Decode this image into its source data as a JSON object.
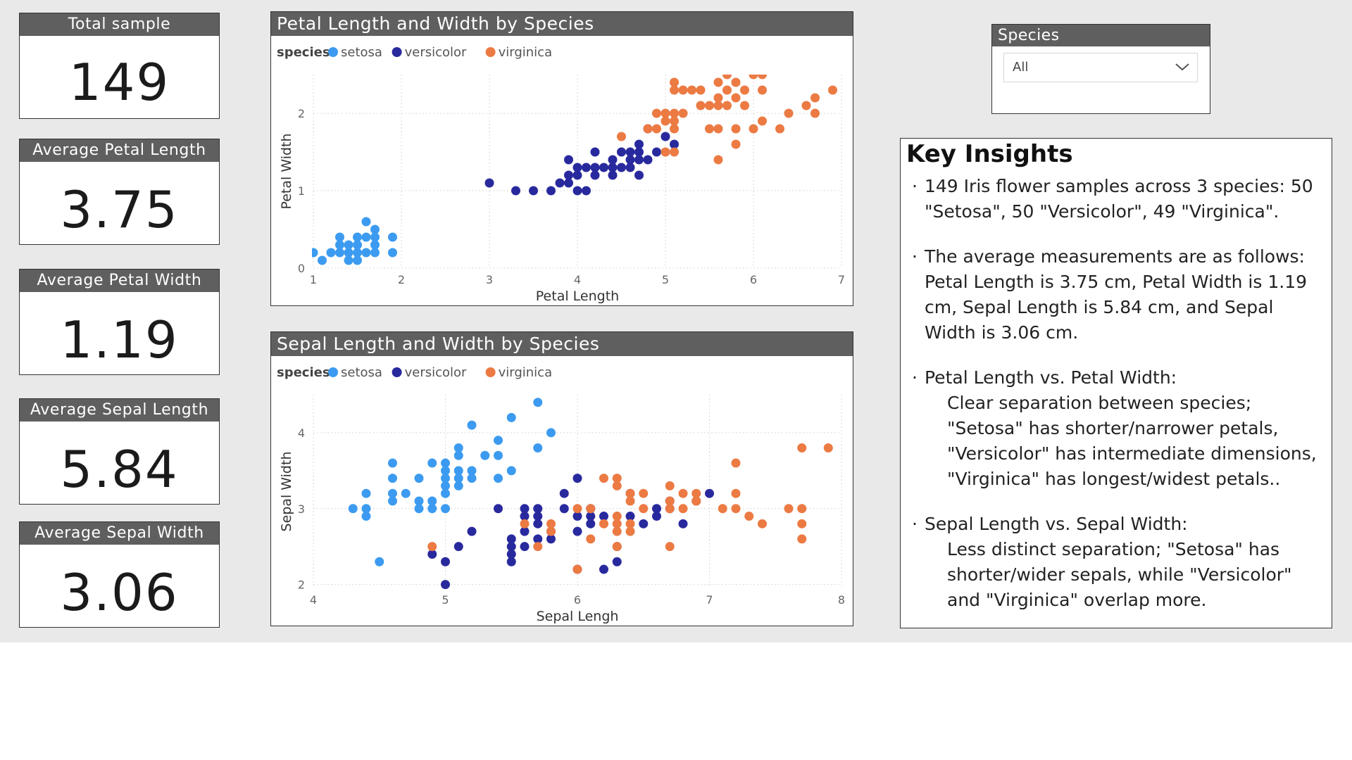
{
  "cards": [
    {
      "title": "Total sample",
      "value": "149"
    },
    {
      "title": "Average Petal Length",
      "value": "3.75"
    },
    {
      "title": "Average Petal Width",
      "value": "1.19"
    },
    {
      "title": "Average Sepal Length",
      "value": "5.84"
    },
    {
      "title": "Average Sepal Width",
      "value": "3.06"
    }
  ],
  "slicer": {
    "title": "Species",
    "selected": "All",
    "icon": "chevron-down-icon"
  },
  "insights": {
    "title": "Key Insights",
    "bullets": [
      {
        "text": "149 Iris flower samples across 3 species: 50 \"Setosa\", 50 \"Versicolor\", 49 \"Virginica\"."
      },
      {
        "text": "The average measurements are as follows: Petal Length is 3.75 cm, Petal Width is 1.19 cm, Sepal Length is 5.84 cm, and Sepal Width is 3.06 cm."
      },
      {
        "text": "Petal Length vs. Petal Width:",
        "sub": "Clear separation between species; \"Setosa\" has shorter/narrower petals, \"Versicolor\" has intermediate dimensions, \"Virginica\" has longest/widest petals.."
      },
      {
        "text": "Sepal Length vs. Sepal Width:",
        "sub": "Less distinct separation; \"Setosa\" has shorter/wider sepals, while \"Versicolor\" and \"Virginica\" overlap more."
      }
    ]
  },
  "colors": {
    "setosa": "#3c9bf0",
    "versicolor": "#29299e",
    "virginica": "#ec7a43",
    "header": "#5f5f5f"
  },
  "chart_data": [
    {
      "type": "scatter",
      "title": "Petal Length and Width by Species",
      "xlabel": "Petal Length",
      "ylabel": "Petal Width",
      "legend_title": "species",
      "legend_position": "top-left",
      "grid": true,
      "xlim": [
        1,
        7
      ],
      "ylim": [
        0,
        2.5
      ],
      "xticks": [
        1,
        2,
        3,
        4,
        5,
        6,
        7
      ],
      "yticks": [
        0,
        1,
        2
      ],
      "series": [
        {
          "name": "setosa",
          "color": "#3c9bf0",
          "points": [
            [
              1.0,
              0.2
            ],
            [
              1.1,
              0.1
            ],
            [
              1.2,
              0.2
            ],
            [
              1.3,
              0.2
            ],
            [
              1.3,
              0.3
            ],
            [
              1.3,
              0.4
            ],
            [
              1.4,
              0.1
            ],
            [
              1.4,
              0.2
            ],
            [
              1.4,
              0.3
            ],
            [
              1.5,
              0.1
            ],
            [
              1.5,
              0.2
            ],
            [
              1.5,
              0.3
            ],
            [
              1.5,
              0.4
            ],
            [
              1.6,
              0.2
            ],
            [
              1.6,
              0.4
            ],
            [
              1.6,
              0.6
            ],
            [
              1.7,
              0.2
            ],
            [
              1.7,
              0.3
            ],
            [
              1.7,
              0.4
            ],
            [
              1.7,
              0.5
            ],
            [
              1.9,
              0.2
            ],
            [
              1.9,
              0.4
            ]
          ]
        },
        {
          "name": "versicolor",
          "color": "#29299e",
          "points": [
            [
              3.0,
              1.1
            ],
            [
              3.3,
              1.0
            ],
            [
              3.5,
              1.0
            ],
            [
              3.7,
              1.0
            ],
            [
              3.8,
              1.1
            ],
            [
              3.9,
              1.1
            ],
            [
              3.9,
              1.2
            ],
            [
              3.9,
              1.4
            ],
            [
              4.0,
              1.0
            ],
            [
              4.0,
              1.2
            ],
            [
              4.0,
              1.3
            ],
            [
              4.1,
              1.0
            ],
            [
              4.1,
              1.3
            ],
            [
              4.2,
              1.2
            ],
            [
              4.2,
              1.3
            ],
            [
              4.2,
              1.5
            ],
            [
              4.3,
              1.3
            ],
            [
              4.4,
              1.2
            ],
            [
              4.4,
              1.3
            ],
            [
              4.4,
              1.4
            ],
            [
              4.5,
              1.3
            ],
            [
              4.5,
              1.5
            ],
            [
              4.6,
              1.3
            ],
            [
              4.6,
              1.4
            ],
            [
              4.6,
              1.5
            ],
            [
              4.7,
              1.2
            ],
            [
              4.7,
              1.4
            ],
            [
              4.7,
              1.5
            ],
            [
              4.7,
              1.6
            ],
            [
              4.8,
              1.4
            ],
            [
              4.8,
              1.8
            ],
            [
              4.9,
              1.5
            ],
            [
              5.0,
              1.7
            ],
            [
              5.1,
              1.6
            ]
          ]
        },
        {
          "name": "virginica",
          "color": "#ec7a43",
          "points": [
            [
              4.5,
              1.7
            ],
            [
              4.8,
              1.8
            ],
            [
              4.9,
              1.8
            ],
            [
              4.9,
              2.0
            ],
            [
              5.0,
              1.5
            ],
            [
              5.0,
              1.9
            ],
            [
              5.0,
              2.0
            ],
            [
              5.1,
              1.5
            ],
            [
              5.1,
              1.8
            ],
            [
              5.1,
              1.9
            ],
            [
              5.1,
              2.0
            ],
            [
              5.1,
              2.3
            ],
            [
              5.1,
              2.4
            ],
            [
              5.2,
              2.0
            ],
            [
              5.2,
              2.3
            ],
            [
              5.3,
              2.3
            ],
            [
              5.4,
              2.3
            ],
            [
              5.4,
              2.1
            ],
            [
              5.5,
              1.8
            ],
            [
              5.5,
              2.1
            ],
            [
              5.6,
              1.8
            ],
            [
              5.6,
              2.1
            ],
            [
              5.6,
              2.2
            ],
            [
              5.6,
              2.4
            ],
            [
              5.6,
              1.4
            ],
            [
              5.7,
              2.1
            ],
            [
              5.7,
              2.3
            ],
            [
              5.7,
              2.5
            ],
            [
              5.8,
              1.6
            ],
            [
              5.8,
              1.8
            ],
            [
              5.8,
              2.2
            ],
            [
              5.8,
              2.4
            ],
            [
              5.9,
              2.1
            ],
            [
              5.9,
              2.3
            ],
            [
              6.0,
              1.8
            ],
            [
              6.0,
              2.5
            ],
            [
              6.1,
              1.9
            ],
            [
              6.1,
              2.3
            ],
            [
              6.1,
              2.5
            ],
            [
              6.3,
              1.8
            ],
            [
              6.4,
              2.0
            ],
            [
              6.6,
              2.1
            ],
            [
              6.7,
              2.0
            ],
            [
              6.7,
              2.2
            ],
            [
              6.9,
              2.3
            ]
          ]
        }
      ]
    },
    {
      "type": "scatter",
      "title": "Sepal Length and Width by Species",
      "xlabel": "Sepal Lengh",
      "ylabel": "Sepal Width",
      "legend_title": "species",
      "legend_position": "top-left",
      "grid": true,
      "xlim": [
        4,
        8
      ],
      "ylim": [
        1.95,
        4.5
      ],
      "xticks": [
        4,
        5,
        6,
        7,
        8
      ],
      "yticks": [
        2,
        3,
        4
      ],
      "series": [
        {
          "name": "setosa",
          "color": "#3c9bf0",
          "points": [
            [
              4.3,
              3.0
            ],
            [
              4.4,
              2.9
            ],
            [
              4.4,
              3.0
            ],
            [
              4.4,
              3.2
            ],
            [
              4.5,
              2.3
            ],
            [
              4.6,
              3.1
            ],
            [
              4.6,
              3.2
            ],
            [
              4.6,
              3.4
            ],
            [
              4.6,
              3.6
            ],
            [
              4.7,
              3.2
            ],
            [
              4.8,
              3.0
            ],
            [
              4.8,
              3.1
            ],
            [
              4.8,
              3.4
            ],
            [
              4.9,
              3.0
            ],
            [
              4.9,
              3.1
            ],
            [
              4.9,
              3.6
            ],
            [
              5.0,
              3.0
            ],
            [
              5.0,
              3.2
            ],
            [
              5.0,
              3.3
            ],
            [
              5.0,
              3.4
            ],
            [
              5.0,
              3.5
            ],
            [
              5.0,
              3.6
            ],
            [
              5.1,
              3.3
            ],
            [
              5.1,
              3.4
            ],
            [
              5.1,
              3.5
            ],
            [
              5.1,
              3.7
            ],
            [
              5.1,
              3.8
            ],
            [
              5.2,
              3.4
            ],
            [
              5.2,
              3.5
            ],
            [
              5.2,
              4.1
            ],
            [
              5.3,
              3.7
            ],
            [
              5.4,
              3.4
            ],
            [
              5.4,
              3.7
            ],
            [
              5.4,
              3.9
            ],
            [
              5.5,
              3.5
            ],
            [
              5.5,
              4.2
            ],
            [
              5.7,
              3.8
            ],
            [
              5.7,
              4.4
            ],
            [
              5.8,
              4.0
            ]
          ]
        },
        {
          "name": "versicolor",
          "color": "#29299e",
          "points": [
            [
              4.9,
              2.4
            ],
            [
              5.0,
              2.0
            ],
            [
              5.0,
              2.3
            ],
            [
              5.1,
              2.5
            ],
            [
              5.2,
              2.7
            ],
            [
              5.4,
              3.0
            ],
            [
              5.5,
              2.3
            ],
            [
              5.5,
              2.4
            ],
            [
              5.5,
              2.5
            ],
            [
              5.5,
              2.6
            ],
            [
              5.6,
              2.5
            ],
            [
              5.6,
              2.7
            ],
            [
              5.6,
              2.9
            ],
            [
              5.6,
              3.0
            ],
            [
              5.7,
              2.6
            ],
            [
              5.7,
              2.8
            ],
            [
              5.7,
              2.9
            ],
            [
              5.7,
              3.0
            ],
            [
              5.8,
              2.6
            ],
            [
              5.8,
              2.7
            ],
            [
              5.9,
              3.0
            ],
            [
              5.9,
              3.2
            ],
            [
              6.0,
              2.2
            ],
            [
              6.0,
              2.7
            ],
            [
              6.0,
              2.9
            ],
            [
              6.0,
              3.4
            ],
            [
              6.1,
              2.8
            ],
            [
              6.1,
              2.9
            ],
            [
              6.1,
              3.0
            ],
            [
              6.2,
              2.2
            ],
            [
              6.2,
              2.9
            ],
            [
              6.3,
              2.3
            ],
            [
              6.3,
              2.5
            ],
            [
              6.4,
              2.9
            ],
            [
              6.4,
              3.2
            ],
            [
              6.5,
              2.8
            ],
            [
              6.6,
              2.9
            ],
            [
              6.6,
              3.0
            ],
            [
              6.7,
              3.0
            ],
            [
              6.7,
              3.1
            ],
            [
              6.8,
              2.8
            ],
            [
              6.9,
              3.1
            ],
            [
              7.0,
              3.2
            ]
          ]
        },
        {
          "name": "virginica",
          "color": "#ec7a43",
          "points": [
            [
              4.9,
              2.5
            ],
            [
              5.6,
              2.8
            ],
            [
              5.7,
              2.5
            ],
            [
              5.8,
              2.7
            ],
            [
              5.8,
              2.8
            ],
            [
              6.0,
              2.2
            ],
            [
              6.0,
              3.0
            ],
            [
              6.1,
              2.6
            ],
            [
              6.1,
              3.0
            ],
            [
              6.2,
              2.8
            ],
            [
              6.2,
              3.4
            ],
            [
              6.3,
              2.5
            ],
            [
              6.3,
              2.7
            ],
            [
              6.3,
              2.8
            ],
            [
              6.3,
              2.9
            ],
            [
              6.3,
              3.3
            ],
            [
              6.3,
              3.4
            ],
            [
              6.4,
              2.7
            ],
            [
              6.4,
              2.8
            ],
            [
              6.4,
              3.1
            ],
            [
              6.4,
              3.2
            ],
            [
              6.5,
              3.0
            ],
            [
              6.5,
              3.2
            ],
            [
              6.7,
              2.5
            ],
            [
              6.7,
              3.0
            ],
            [
              6.7,
              3.1
            ],
            [
              6.7,
              3.3
            ],
            [
              6.8,
              3.0
            ],
            [
              6.8,
              3.2
            ],
            [
              6.9,
              3.1
            ],
            [
              6.9,
              3.2
            ],
            [
              7.1,
              3.0
            ],
            [
              7.2,
              3.0
            ],
            [
              7.2,
              3.2
            ],
            [
              7.2,
              3.6
            ],
            [
              7.3,
              2.9
            ],
            [
              7.4,
              2.8
            ],
            [
              7.6,
              3.0
            ],
            [
              7.7,
              2.6
            ],
            [
              7.7,
              2.8
            ],
            [
              7.7,
              3.0
            ],
            [
              7.7,
              3.8
            ],
            [
              7.9,
              3.8
            ]
          ]
        }
      ]
    }
  ]
}
